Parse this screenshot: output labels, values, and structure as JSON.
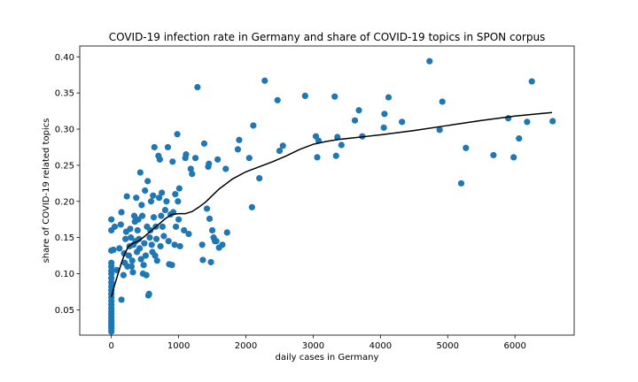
{
  "chart_data": {
    "type": "scatter",
    "title": "COVID-19 infection rate in Germany and share of COVID-19 topics in SPON corpus",
    "xlabel": "daily cases in Germany",
    "ylabel": "share of COVID-19 related topics",
    "xlim": [
      -470,
      6880
    ],
    "ylim": [
      0.015,
      0.415
    ],
    "xticks": [
      0,
      1000,
      2000,
      3000,
      4000,
      5000,
      6000
    ],
    "yticks": [
      0.05,
      0.1,
      0.15,
      0.2,
      0.25,
      0.3,
      0.35,
      0.4
    ],
    "xtick_labels": [
      "0",
      "1000",
      "2000",
      "3000",
      "4000",
      "5000",
      "6000"
    ],
    "ytick_labels": [
      "0.05",
      "0.10",
      "0.15",
      "0.20",
      "0.25",
      "0.30",
      "0.35",
      "0.40"
    ],
    "grid": false,
    "legend": "none",
    "marker_color": "#1f77b4",
    "line_color": "#000000",
    "series": [
      {
        "kind": "scatter",
        "points": [
          [
            0,
            0.02
          ],
          [
            0,
            0.024
          ],
          [
            0,
            0.027
          ],
          [
            0,
            0.03
          ],
          [
            0,
            0.033
          ],
          [
            0,
            0.036
          ],
          [
            0,
            0.04
          ],
          [
            0,
            0.044
          ],
          [
            0,
            0.048
          ],
          [
            0,
            0.052
          ],
          [
            0,
            0.057
          ],
          [
            0,
            0.062
          ],
          [
            0,
            0.067
          ],
          [
            0,
            0.072
          ],
          [
            0,
            0.077
          ],
          [
            0,
            0.082
          ],
          [
            0,
            0.088
          ],
          [
            0,
            0.094
          ],
          [
            0,
            0.1
          ],
          [
            0,
            0.104
          ],
          [
            0,
            0.11
          ],
          [
            0,
            0.115
          ],
          [
            0,
            0.132
          ],
          [
            0,
            0.16
          ],
          [
            0,
            0.175
          ],
          [
            30,
            0.133
          ],
          [
            50,
            0.165
          ],
          [
            80,
            0.105
          ],
          [
            120,
            0.135
          ],
          [
            140,
            0.168
          ],
          [
            150,
            0.185
          ],
          [
            150,
            0.064
          ],
          [
            180,
            0.098
          ],
          [
            190,
            0.128
          ],
          [
            200,
            0.115
          ],
          [
            210,
            0.148
          ],
          [
            220,
            0.158
          ],
          [
            230,
            0.207
          ],
          [
            240,
            0.11
          ],
          [
            260,
            0.125
          ],
          [
            270,
            0.138
          ],
          [
            280,
            0.162
          ],
          [
            290,
            0.15
          ],
          [
            300,
            0.11
          ],
          [
            310,
            0.118
          ],
          [
            320,
            0.102
          ],
          [
            330,
            0.14
          ],
          [
            340,
            0.18
          ],
          [
            350,
            0.172
          ],
          [
            360,
            0.145
          ],
          [
            370,
            0.205
          ],
          [
            380,
            0.13
          ],
          [
            390,
            0.16
          ],
          [
            400,
            0.175
          ],
          [
            410,
            0.148
          ],
          [
            420,
            0.135
          ],
          [
            430,
            0.24
          ],
          [
            440,
            0.12
          ],
          [
            450,
            0.195
          ],
          [
            460,
            0.18
          ],
          [
            470,
            0.1
          ],
          [
            480,
            0.112
          ],
          [
            490,
            0.142
          ],
          [
            500,
            0.215
          ],
          [
            510,
            0.125
          ],
          [
            520,
            0.098
          ],
          [
            530,
            0.165
          ],
          [
            540,
            0.228
          ],
          [
            550,
            0.07
          ],
          [
            560,
            0.072
          ],
          [
            570,
            0.15
          ],
          [
            580,
            0.16
          ],
          [
            590,
            0.2
          ],
          [
            600,
            0.14
          ],
          [
            610,
            0.13
          ],
          [
            620,
            0.208
          ],
          [
            630,
            0.178
          ],
          [
            640,
            0.275
          ],
          [
            650,
            0.125
          ],
          [
            660,
            0.165
          ],
          [
            670,
            0.148
          ],
          [
            680,
            0.118
          ],
          [
            700,
            0.263
          ],
          [
            710,
            0.205
          ],
          [
            720,
            0.258
          ],
          [
            730,
            0.138
          ],
          [
            740,
            0.18
          ],
          [
            750,
            0.212
          ],
          [
            760,
            0.165
          ],
          [
            780,
            0.152
          ],
          [
            800,
            0.188
          ],
          [
            820,
            0.2
          ],
          [
            840,
            0.275
          ],
          [
            850,
            0.145
          ],
          [
            860,
            0.113
          ],
          [
            880,
            0.182
          ],
          [
            900,
            0.112
          ],
          [
            910,
            0.255
          ],
          [
            920,
            0.185
          ],
          [
            940,
            0.14
          ],
          [
            950,
            0.21
          ],
          [
            960,
            0.165
          ],
          [
            980,
            0.293
          ],
          [
            990,
            0.2
          ],
          [
            1000,
            0.175
          ],
          [
            1010,
            0.218
          ],
          [
            1020,
            0.138
          ],
          [
            1080,
            0.16
          ],
          [
            1100,
            0.26
          ],
          [
            1110,
            0.265
          ],
          [
            1150,
            0.155
          ],
          [
            1180,
            0.245
          ],
          [
            1200,
            0.238
          ],
          [
            1250,
            0.26
          ],
          [
            1280,
            0.358
          ],
          [
            1350,
            0.14
          ],
          [
            1360,
            0.119
          ],
          [
            1380,
            0.28
          ],
          [
            1420,
            0.19
          ],
          [
            1440,
            0.248
          ],
          [
            1450,
            0.252
          ],
          [
            1460,
            0.176
          ],
          [
            1480,
            0.116
          ],
          [
            1500,
            0.16
          ],
          [
            1520,
            0.15
          ],
          [
            1540,
            0.145
          ],
          [
            1560,
            0.145
          ],
          [
            1580,
            0.258
          ],
          [
            1600,
            0.136
          ],
          [
            1650,
            0.14
          ],
          [
            1700,
            0.245
          ],
          [
            1720,
            0.157
          ],
          [
            1880,
            0.272
          ],
          [
            1900,
            0.285
          ],
          [
            2050,
            0.26
          ],
          [
            2090,
            0.192
          ],
          [
            2110,
            0.305
          ],
          [
            2200,
            0.232
          ],
          [
            2280,
            0.367
          ],
          [
            2470,
            0.34
          ],
          [
            2500,
            0.27
          ],
          [
            2550,
            0.277
          ],
          [
            2880,
            0.346
          ],
          [
            3040,
            0.29
          ],
          [
            3060,
            0.261
          ],
          [
            3080,
            0.284
          ],
          [
            3320,
            0.345
          ],
          [
            3340,
            0.263
          ],
          [
            3360,
            0.289
          ],
          [
            3420,
            0.278
          ],
          [
            3620,
            0.312
          ],
          [
            3680,
            0.326
          ],
          [
            3730,
            0.29
          ],
          [
            4050,
            0.302
          ],
          [
            4060,
            0.321
          ],
          [
            4120,
            0.344
          ],
          [
            4320,
            0.31
          ],
          [
            4730,
            0.394
          ],
          [
            4880,
            0.299
          ],
          [
            4920,
            0.338
          ],
          [
            5200,
            0.225
          ],
          [
            5270,
            0.274
          ],
          [
            5680,
            0.264
          ],
          [
            5900,
            0.315
          ],
          [
            5980,
            0.261
          ],
          [
            6060,
            0.287
          ],
          [
            6180,
            0.31
          ],
          [
            6250,
            0.366
          ],
          [
            6560,
            0.311
          ]
        ]
      },
      {
        "kind": "line",
        "points": [
          [
            0,
            0.068
          ],
          [
            50,
            0.085
          ],
          [
            100,
            0.1
          ],
          [
            150,
            0.115
          ],
          [
            200,
            0.128
          ],
          [
            250,
            0.137
          ],
          [
            300,
            0.141
          ],
          [
            400,
            0.145
          ],
          [
            500,
            0.152
          ],
          [
            600,
            0.16
          ],
          [
            700,
            0.168
          ],
          [
            800,
            0.176
          ],
          [
            900,
            0.182
          ],
          [
            1000,
            0.183
          ],
          [
            1100,
            0.183
          ],
          [
            1200,
            0.186
          ],
          [
            1300,
            0.192
          ],
          [
            1400,
            0.199
          ],
          [
            1500,
            0.208
          ],
          [
            1600,
            0.217
          ],
          [
            1800,
            0.231
          ],
          [
            2000,
            0.241
          ],
          [
            2200,
            0.248
          ],
          [
            2400,
            0.255
          ],
          [
            2600,
            0.263
          ],
          [
            2800,
            0.272
          ],
          [
            3000,
            0.279
          ],
          [
            3200,
            0.283
          ],
          [
            3400,
            0.286
          ],
          [
            3600,
            0.288
          ],
          [
            3800,
            0.29
          ],
          [
            4000,
            0.292
          ],
          [
            4500,
            0.298
          ],
          [
            5000,
            0.305
          ],
          [
            5500,
            0.312
          ],
          [
            6000,
            0.318
          ],
          [
            6550,
            0.323
          ]
        ]
      }
    ]
  }
}
